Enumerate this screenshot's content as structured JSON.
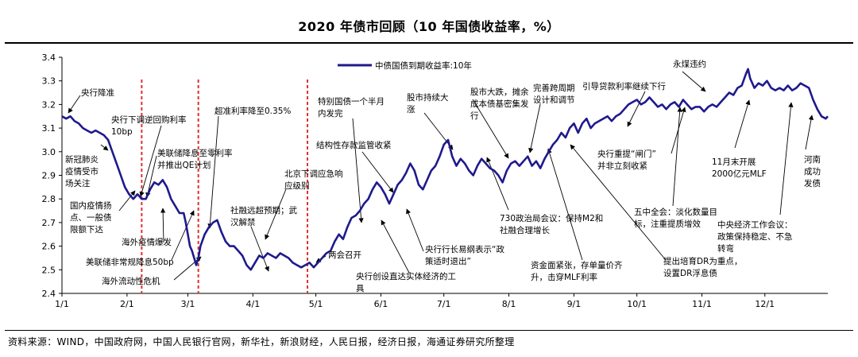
{
  "title": "2020 年债市回顾（10 年国债收益率，%）",
  "source": "资料来源：WIND，中国政府网，中国人民银行官网，新华社，新浪财经，人民日报，经济日报，海通证券研究所整理",
  "chart_data": {
    "type": "line",
    "title": "2020 年债市回顾（10 年国债收益率，%）",
    "xlabel": "",
    "ylabel": "",
    "ylim": [
      2.4,
      3.4
    ],
    "yticks": [
      "3.4",
      "3.3",
      "3.2",
      "3.1",
      "3.0",
      "2.9",
      "2.8",
      "2.7",
      "2.6",
      "2.5",
      "2.4"
    ],
    "ytick_values": [
      3.4,
      3.3,
      3.2,
      3.1,
      3.0,
      2.9,
      2.8,
      2.7,
      2.6,
      2.5,
      2.4
    ],
    "xlim": [
      0,
      365
    ],
    "xticks": [
      "1/1",
      "2/1",
      "3/1",
      "4/1",
      "5/1",
      "6/1",
      "7/1",
      "8/1",
      "9/1",
      "10/1",
      "11/1",
      "12/1"
    ],
    "xtick_days": [
      0,
      31,
      60,
      91,
      121,
      152,
      182,
      213,
      244,
      274,
      305,
      335
    ],
    "legend": {
      "label": "中债国债到期收益率:10年",
      "position": "top-center"
    },
    "color": "#1f1a8c",
    "vlines_day": [
      38,
      65,
      117
    ],
    "vline_color": "#e03030",
    "series": [
      {
        "name": "中债国债到期收益率:10年",
        "points": [
          [
            0,
            3.15
          ],
          [
            2,
            3.14
          ],
          [
            4,
            3.15
          ],
          [
            6,
            3.13
          ],
          [
            8,
            3.12
          ],
          [
            10,
            3.1
          ],
          [
            12,
            3.09
          ],
          [
            14,
            3.08
          ],
          [
            16,
            3.09
          ],
          [
            18,
            3.08
          ],
          [
            20,
            3.07
          ],
          [
            22,
            3.05
          ],
          [
            24,
            3.0
          ],
          [
            26,
            2.95
          ],
          [
            28,
            2.9
          ],
          [
            30,
            2.85
          ],
          [
            32,
            2.82
          ],
          [
            34,
            2.8
          ],
          [
            36,
            2.82
          ],
          [
            38,
            2.8
          ],
          [
            40,
            2.8
          ],
          [
            42,
            2.84
          ],
          [
            44,
            2.87
          ],
          [
            46,
            2.86
          ],
          [
            48,
            2.88
          ],
          [
            50,
            2.85
          ],
          [
            52,
            2.8
          ],
          [
            54,
            2.77
          ],
          [
            56,
            2.74
          ],
          [
            58,
            2.74
          ],
          [
            59,
            2.7
          ],
          [
            61,
            2.6
          ],
          [
            62,
            2.58
          ],
          [
            63,
            2.55
          ],
          [
            64,
            2.52
          ],
          [
            65,
            2.55
          ],
          [
            66,
            2.6
          ],
          [
            68,
            2.65
          ],
          [
            70,
            2.68
          ],
          [
            72,
            2.7
          ],
          [
            74,
            2.71
          ],
          [
            76,
            2.66
          ],
          [
            78,
            2.62
          ],
          [
            80,
            2.6
          ],
          [
            82,
            2.6
          ],
          [
            84,
            2.58
          ],
          [
            86,
            2.56
          ],
          [
            88,
            2.52
          ],
          [
            90,
            2.5
          ],
          [
            92,
            2.53
          ],
          [
            94,
            2.56
          ],
          [
            96,
            2.55
          ],
          [
            98,
            2.57
          ],
          [
            100,
            2.56
          ],
          [
            102,
            2.55
          ],
          [
            104,
            2.57
          ],
          [
            106,
            2.56
          ],
          [
            108,
            2.55
          ],
          [
            110,
            2.53
          ],
          [
            112,
            2.52
          ],
          [
            114,
            2.51
          ],
          [
            116,
            2.52
          ],
          [
            118,
            2.53
          ],
          [
            120,
            2.51
          ],
          [
            122,
            2.53
          ],
          [
            124,
            2.55
          ],
          [
            126,
            2.57
          ],
          [
            128,
            2.58
          ],
          [
            130,
            2.62
          ],
          [
            132,
            2.65
          ],
          [
            134,
            2.63
          ],
          [
            136,
            2.68
          ],
          [
            138,
            2.72
          ],
          [
            140,
            2.73
          ],
          [
            142,
            2.75
          ],
          [
            144,
            2.78
          ],
          [
            146,
            2.8
          ],
          [
            148,
            2.84
          ],
          [
            150,
            2.87
          ],
          [
            152,
            2.85
          ],
          [
            154,
            2.82
          ],
          [
            156,
            2.78
          ],
          [
            158,
            2.82
          ],
          [
            160,
            2.86
          ],
          [
            162,
            2.88
          ],
          [
            164,
            2.91
          ],
          [
            166,
            2.95
          ],
          [
            168,
            2.92
          ],
          [
            170,
            2.86
          ],
          [
            172,
            2.84
          ],
          [
            174,
            2.88
          ],
          [
            176,
            2.92
          ],
          [
            178,
            2.94
          ],
          [
            180,
            2.98
          ],
          [
            182,
            3.03
          ],
          [
            184,
            3.05
          ],
          [
            186,
            2.98
          ],
          [
            188,
            2.94
          ],
          [
            190,
            2.97
          ],
          [
            192,
            2.95
          ],
          [
            194,
            2.92
          ],
          [
            196,
            2.9
          ],
          [
            198,
            2.94
          ],
          [
            200,
            2.97
          ],
          [
            202,
            2.95
          ],
          [
            204,
            2.93
          ],
          [
            206,
            2.92
          ],
          [
            208,
            2.9
          ],
          [
            210,
            2.87
          ],
          [
            212,
            2.92
          ],
          [
            214,
            2.95
          ],
          [
            216,
            2.96
          ],
          [
            218,
            2.94
          ],
          [
            220,
            2.96
          ],
          [
            222,
            2.98
          ],
          [
            224,
            2.94
          ],
          [
            226,
            2.96
          ],
          [
            228,
            2.93
          ],
          [
            230,
            2.97
          ],
          [
            232,
            3.0
          ],
          [
            234,
            3.03
          ],
          [
            236,
            3.05
          ],
          [
            238,
            3.08
          ],
          [
            240,
            3.06
          ],
          [
            242,
            3.1
          ],
          [
            244,
            3.12
          ],
          [
            246,
            3.08
          ],
          [
            248,
            3.12
          ],
          [
            250,
            3.14
          ],
          [
            252,
            3.1
          ],
          [
            254,
            3.12
          ],
          [
            256,
            3.13
          ],
          [
            258,
            3.14
          ],
          [
            260,
            3.15
          ],
          [
            262,
            3.13
          ],
          [
            264,
            3.15
          ],
          [
            266,
            3.16
          ],
          [
            268,
            3.18
          ],
          [
            270,
            3.2
          ],
          [
            272,
            3.21
          ],
          [
            274,
            3.22
          ],
          [
            276,
            3.2
          ],
          [
            278,
            3.21
          ],
          [
            280,
            3.23
          ],
          [
            282,
            3.21
          ],
          [
            284,
            3.19
          ],
          [
            286,
            3.2
          ],
          [
            288,
            3.18
          ],
          [
            290,
            3.2
          ],
          [
            292,
            3.21
          ],
          [
            294,
            3.19
          ],
          [
            296,
            3.22
          ],
          [
            298,
            3.2
          ],
          [
            300,
            3.18
          ],
          [
            302,
            3.19
          ],
          [
            304,
            3.19
          ],
          [
            306,
            3.17
          ],
          [
            308,
            3.19
          ],
          [
            310,
            3.2
          ],
          [
            312,
            3.19
          ],
          [
            314,
            3.21
          ],
          [
            316,
            3.23
          ],
          [
            318,
            3.25
          ],
          [
            320,
            3.24
          ],
          [
            322,
            3.27
          ],
          [
            324,
            3.28
          ],
          [
            326,
            3.33
          ],
          [
            327,
            3.35
          ],
          [
            328,
            3.31
          ],
          [
            330,
            3.27
          ],
          [
            332,
            3.29
          ],
          [
            334,
            3.28
          ],
          [
            336,
            3.3
          ],
          [
            338,
            3.27
          ],
          [
            340,
            3.26
          ],
          [
            342,
            3.27
          ],
          [
            344,
            3.26
          ],
          [
            346,
            3.28
          ],
          [
            348,
            3.26
          ],
          [
            350,
            3.27
          ],
          [
            352,
            3.29
          ],
          [
            354,
            3.28
          ],
          [
            356,
            3.27
          ],
          [
            358,
            3.22
          ],
          [
            360,
            3.18
          ],
          [
            362,
            3.15
          ],
          [
            364,
            3.14
          ],
          [
            365,
            3.15
          ]
        ]
      }
    ],
    "annotations": [
      {
        "lines": [
          "央行降准"
        ]
      },
      {
        "lines": [
          "新冠肺炎",
          "疫情受市",
          "场关注"
        ]
      },
      {
        "lines": [
          "央行下调逆回购利率",
          "10bp"
        ]
      },
      {
        "lines": [
          "美联储降息至零利率",
          "并推出QE计划"
        ]
      },
      {
        "lines": [
          "国内疫情扬",
          "点、一般债",
          "限额下达"
        ]
      },
      {
        "lines": [
          "海外疫情爆发"
        ]
      },
      {
        "lines": [
          "美联储非常规降息50bp"
        ]
      },
      {
        "lines": [
          "海外流动性危机"
        ]
      },
      {
        "lines": [
          "超准利率降至0.35%"
        ]
      },
      {
        "lines": [
          "社融远超预期；武",
          "汉解禁"
        ]
      },
      {
        "lines": [
          "北京下调应急响",
          "应级别"
        ]
      },
      {
        "lines": [
          "两会召开"
        ]
      },
      {
        "lines": [
          "特别国债一个半月",
          "内发完"
        ]
      },
      {
        "lines": [
          "结构性存款监管收紧"
        ]
      },
      {
        "lines": [
          "股市持续大",
          "涨"
        ]
      },
      {
        "lines": [
          "股市大跌，摊余",
          "成本债基密集发",
          "行"
        ]
      },
      {
        "lines": [
          "完善跨周期",
          "设计和调节"
        ]
      },
      {
        "lines": [
          "引导贷款利率继续下行"
        ]
      },
      {
        "lines": [
          "永煤违约"
        ]
      },
      {
        "lines": [
          "央行行长易纲表示“政",
          "策适时退出”"
        ]
      },
      {
        "lines": [
          "央行创设直达实体经济的工",
          "具"
        ]
      },
      {
        "lines": [
          "730政治局会议：保持M2和",
          "社融合理增长"
        ]
      },
      {
        "lines": [
          "资金面紧张，存单量价齐",
          "升，击穿MLF利率"
        ]
      },
      {
        "lines": [
          "央行重提“闸门”",
          "并非立刻收紧"
        ]
      },
      {
        "lines": [
          "五中全会：淡化数量目",
          "标，注重提质增效"
        ]
      },
      {
        "lines": [
          "提出培育DR为重点，",
          "设置DR浮息债"
        ]
      },
      {
        "lines": [
          "11月末开展",
          "2000亿元MLF"
        ]
      },
      {
        "lines": [
          "河南",
          "成功",
          "发债"
        ]
      },
      {
        "lines": [
          "中央经济工作会议：",
          "政策保持稳定、不急",
          "转弯"
        ]
      }
    ]
  }
}
